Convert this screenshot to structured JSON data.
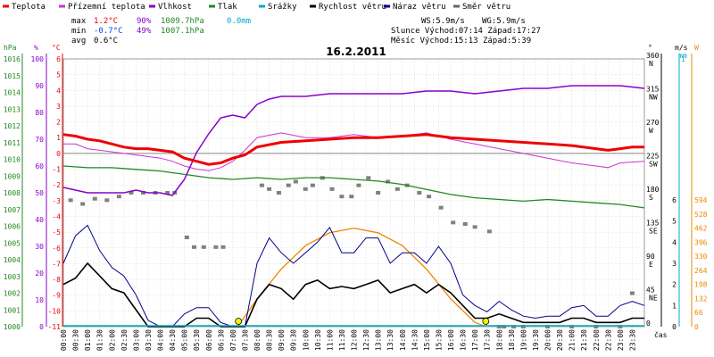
{
  "header": {
    "date_title": "16.2.2011"
  },
  "legend": [
    {
      "label": "Teplota",
      "color": "#ee0000"
    },
    {
      "label": "Přízemní teplota",
      "color": "#cc33cc"
    },
    {
      "label": "Vlhkost",
      "color": "#8800cc"
    },
    {
      "label": "Tlak",
      "color": "#228822"
    },
    {
      "label": "Srážky",
      "color": "#00aacc"
    },
    {
      "label": "Rychlost větru",
      "color": "#000000"
    },
    {
      "label": "Náraz větru",
      "color": "#000088"
    },
    {
      "label": "Směr větru",
      "color": "#666666"
    }
  ],
  "stats": {
    "max_label": "max",
    "min_label": "min",
    "avg_label": "avg",
    "max_temp": "1.2°C",
    "max_hum": "90%",
    "max_press": "1009.7hPa",
    "max_rain": "0.0mm",
    "min_temp": "-0.7°C",
    "min_hum": "49%",
    "min_press": "1007.1hPa",
    "avg_temp": "0.6°C",
    "ws": "WS:5.9m/s",
    "wg": "WG:5.9m/s",
    "sun": "Slunce Východ:07:14  Západ:17:27",
    "moon": "Měsíc  Východ:15:13  Západ:5:39"
  },
  "axes": {
    "hpa_label": "hPa",
    "pct_label": "%",
    "c_label": "°C",
    "deg_label": "°",
    "ms_label": "m/s",
    "mm_label": "mm",
    "w_label": "W",
    "time_label": "čas",
    "hpa_ticks": [
      "1016",
      "1015",
      "1014",
      "1013",
      "1012",
      "1011",
      "1010",
      "1009",
      "1008",
      "1007",
      "1006",
      "1005",
      "1004",
      "1003",
      "1002",
      "1001",
      "1000"
    ],
    "pct_ticks": [
      "100",
      "90",
      "80",
      "70",
      "60",
      "50",
      "40",
      "30",
      "20",
      "10",
      "0"
    ],
    "c_ticks": [
      "6",
      "5",
      "4",
      "3",
      "2",
      "1",
      "0",
      "-1",
      "-2",
      "-3",
      "-4",
      "-5",
      "-6",
      "-7",
      "-8",
      "-9",
      "-10",
      "-11"
    ],
    "deg_ticks": [
      {
        "deg": "360",
        "dir": "N"
      },
      {
        "deg": "315",
        "dir": "NW"
      },
      {
        "deg": "270",
        "dir": "W"
      },
      {
        "deg": "225",
        "dir": "SW"
      },
      {
        "deg": "180",
        "dir": "S"
      },
      {
        "deg": "135",
        "dir": "SE"
      },
      {
        "deg": "90",
        "dir": "E"
      },
      {
        "deg": "45",
        "dir": "NE"
      },
      {
        "deg": "0",
        "dir": ""
      }
    ],
    "ms_ticks": [
      "6",
      "5",
      "4",
      "3",
      "2",
      "1",
      "0"
    ],
    "w_ticks": [
      "594",
      "528",
      "462",
      "396",
      "330",
      "264",
      "198",
      "132",
      "66",
      "0"
    ],
    "rain_top": "1",
    "time_ticks": [
      "00:00",
      "00:30",
      "01:00",
      "01:30",
      "02:00",
      "02:30",
      "03:00",
      "03:30",
      "04:00",
      "04:30",
      "05:00",
      "05:30",
      "06:00",
      "06:30",
      "07:00",
      "07:30",
      "08:00",
      "08:30",
      "09:00",
      "09:30",
      "10:00",
      "10:30",
      "11:00",
      "11:30",
      "12:00",
      "12:30",
      "13:00",
      "13:30",
      "14:00",
      "14:30",
      "15:00",
      "15:30",
      "16:00",
      "16:30",
      "17:00",
      "17:30",
      "18:00",
      "18:30",
      "19:00",
      "19:30",
      "20:00",
      "20:30",
      "21:00",
      "21:30",
      "22:00",
      "22:30",
      "23:00",
      "23:30"
    ]
  },
  "colors": {
    "temp": "#ee0000",
    "ground": "#cc33cc",
    "hum": "#8800cc",
    "press": "#228822",
    "rain": "#00aacc",
    "speed": "#000000",
    "gust": "#000088",
    "dir": "#808080",
    "solar": "#ee8800",
    "grid": "#c8c8c8"
  },
  "chart_data": {
    "type": "line",
    "x_unit": "hour of day",
    "xlim": [
      0,
      24
    ],
    "series": [
      {
        "name": "Teplota",
        "unit": "°C",
        "x": [
          0,
          0.5,
          1,
          1.5,
          2,
          2.5,
          3,
          3.5,
          4,
          4.5,
          5,
          5.5,
          6,
          6.5,
          7,
          7.5,
          8,
          9,
          10,
          11,
          12,
          13,
          14,
          15,
          16,
          17,
          18,
          19,
          20,
          21,
          22,
          22.5,
          23,
          23.5,
          24
        ],
        "y": [
          1.2,
          1.1,
          0.9,
          0.8,
          0.6,
          0.4,
          0.3,
          0.3,
          0.2,
          0.1,
          -0.3,
          -0.5,
          -0.7,
          -0.6,
          -0.3,
          -0.1,
          0.4,
          0.7,
          0.8,
          0.9,
          1.0,
          1.0,
          1.1,
          1.2,
          1.0,
          0.9,
          0.8,
          0.7,
          0.6,
          0.5,
          0.3,
          0.2,
          0.3,
          0.4,
          0.4
        ]
      },
      {
        "name": "Přízemní teplota",
        "unit": "°C",
        "x": [
          0,
          0.5,
          1,
          1.5,
          2,
          3,
          4,
          4.5,
          5,
          5.5,
          6,
          6.5,
          7,
          7.5,
          8,
          9,
          10,
          11,
          12,
          13,
          14,
          15,
          16,
          17,
          18,
          19,
          20,
          21,
          22,
          22.5,
          23,
          24
        ],
        "y": [
          0.6,
          0.6,
          0.3,
          0.2,
          0.1,
          -0.1,
          -0.3,
          -0.5,
          -0.8,
          -1.0,
          -1.1,
          -0.9,
          -0.5,
          0.2,
          1.0,
          1.3,
          1.0,
          1.0,
          1.2,
          1.0,
          1.1,
          1.3,
          0.9,
          0.6,
          0.3,
          0.0,
          -0.3,
          -0.6,
          -0.8,
          -0.9,
          -0.6,
          -0.5
        ]
      },
      {
        "name": "Vlhkost",
        "unit": "%",
        "x": [
          0,
          0.5,
          1,
          1.5,
          2,
          2.5,
          3,
          3.5,
          4,
          4.5,
          5,
          5.5,
          6,
          6.5,
          7,
          7.5,
          8,
          8.5,
          9,
          10,
          11,
          12,
          13,
          14,
          15,
          16,
          17,
          18,
          19,
          20,
          21,
          22,
          23,
          24
        ],
        "y": [
          52,
          51,
          50,
          50,
          50,
          50,
          51,
          50,
          50,
          49,
          55,
          65,
          72,
          78,
          79,
          78,
          83,
          85,
          86,
          86,
          87,
          87,
          87,
          87,
          88,
          88,
          87,
          88,
          89,
          89,
          90,
          90,
          90,
          89
        ]
      },
      {
        "name": "Tlak",
        "unit": "hPa",
        "x": [
          0,
          1,
          2,
          3,
          4,
          5,
          6,
          7,
          8,
          9,
          10,
          11,
          12,
          13,
          14,
          15,
          16,
          17,
          18,
          19,
          20,
          21,
          22,
          23,
          24
        ],
        "y": [
          1009.6,
          1009.5,
          1009.5,
          1009.4,
          1009.3,
          1009.1,
          1008.9,
          1008.8,
          1008.9,
          1008.8,
          1008.9,
          1008.9,
          1008.8,
          1008.7,
          1008.5,
          1008.2,
          1007.9,
          1007.7,
          1007.6,
          1007.5,
          1007.6,
          1007.5,
          1007.4,
          1007.3,
          1007.1
        ]
      },
      {
        "name": "Srážky",
        "unit": "mm",
        "x": [
          0,
          24
        ],
        "y": [
          0,
          0
        ]
      },
      {
        "name": "Rychlost větru",
        "unit": "m/s",
        "x": [
          0,
          0.5,
          1,
          1.5,
          2,
          2.5,
          3,
          3.5,
          4,
          4.5,
          5,
          5.5,
          6,
          6.5,
          7,
          7.5,
          8,
          8.5,
          9,
          9.5,
          10,
          10.5,
          11,
          11.5,
          12,
          12.5,
          13,
          13.5,
          14,
          14.5,
          15,
          15.5,
          16,
          16.5,
          17,
          17.5,
          18,
          18.5,
          19,
          19.5,
          20,
          20.5,
          21,
          21.5,
          22,
          22.5,
          23,
          23.5,
          24
        ],
        "y": [
          2.0,
          2.3,
          3.0,
          2.4,
          1.8,
          1.6,
          0.8,
          0,
          0,
          0,
          0,
          0.4,
          0.4,
          0,
          0,
          0,
          1.3,
          2.0,
          1.8,
          1.3,
          2.0,
          2.2,
          1.8,
          1.9,
          1.8,
          2.0,
          2.2,
          1.6,
          1.8,
          2.0,
          1.6,
          2.0,
          1.6,
          1.0,
          0.4,
          0.4,
          0.6,
          0.4,
          0.2,
          0.2,
          0.2,
          0.2,
          0.4,
          0.4,
          0.2,
          0.2,
          0.2,
          0.4,
          0.4
        ]
      },
      {
        "name": "Náraz větru",
        "unit": "m/s",
        "x": [
          0,
          0.5,
          1,
          1.5,
          2,
          2.5,
          3,
          3.5,
          4,
          4.5,
          5,
          5.5,
          6,
          6.5,
          7,
          7.5,
          8,
          8.5,
          9,
          9.5,
          10,
          10.5,
          11,
          11.5,
          12,
          12.5,
          13,
          13.5,
          14,
          14.5,
          15,
          15.5,
          16,
          16.5,
          17,
          17.5,
          18,
          18.5,
          19,
          19.5,
          20,
          20.5,
          21,
          21.5,
          22,
          22.5,
          23,
          23.5,
          24
        ],
        "y": [
          3.0,
          4.3,
          4.8,
          3.6,
          2.8,
          2.4,
          1.5,
          0.3,
          0,
          0,
          0.6,
          0.9,
          0.9,
          0.2,
          0,
          0,
          3.0,
          4.2,
          3.5,
          3.0,
          3.5,
          4.0,
          4.7,
          3.5,
          3.5,
          4.2,
          4.2,
          3.0,
          3.5,
          3.5,
          3.0,
          3.8,
          3.0,
          1.5,
          1.0,
          0.7,
          1.2,
          0.8,
          0.5,
          0.4,
          0.5,
          0.5,
          0.9,
          1.0,
          0.5,
          0.5,
          1.0,
          1.2,
          1.0
        ]
      },
      {
        "name": "Směr větru",
        "unit": "°",
        "x": [
          0.3,
          0.8,
          1.3,
          1.8,
          2.3,
          2.8,
          3.3,
          3.8,
          4.3,
          4.6,
          5.1,
          5.4,
          5.8,
          6.3,
          6.6,
          8.2,
          8.5,
          8.9,
          9.3,
          9.6,
          10.0,
          10.3,
          10.7,
          11.1,
          11.5,
          11.9,
          12.2,
          12.6,
          13.0,
          13.4,
          13.8,
          14.2,
          14.7,
          15.1,
          15.6,
          16.1,
          16.6,
          17.0,
          17.6,
          18.0,
          18.2,
          18.6,
          19.0,
          20.0,
          21.0,
          22.0,
          23.0,
          23.5
        ],
        "y": [
          170,
          165,
          172,
          170,
          175,
          180,
          180,
          180,
          180,
          180,
          120,
          107,
          107,
          107,
          107,
          190,
          185,
          180,
          190,
          195,
          185,
          190,
          200,
          185,
          175,
          175,
          190,
          200,
          180,
          195,
          185,
          190,
          180,
          175,
          160,
          140,
          138,
          134,
          128,
          0,
          0,
          0,
          0,
          0,
          0,
          0,
          0,
          45
        ]
      },
      {
        "name": "Solar",
        "unit": "W",
        "x": [
          7.2,
          8,
          9,
          10,
          11,
          12,
          13,
          14,
          15,
          16,
          17,
          17.45
        ],
        "y": [
          0,
          130,
          270,
          380,
          440,
          462,
          440,
          380,
          270,
          130,
          20,
          0
        ]
      }
    ],
    "markers": {
      "sunrise": "07:14",
      "sunset": "17:27"
    },
    "ylim_temp": [
      -11,
      6
    ],
    "ylim_pressure": [
      1000,
      1016
    ],
    "ylim_humidity": [
      0,
      100
    ],
    "ylim_direction": [
      0,
      360
    ],
    "ylim_wind": [
      0,
      6
    ],
    "ylim_solar": [
      0,
      594
    ],
    "grid": true
  }
}
